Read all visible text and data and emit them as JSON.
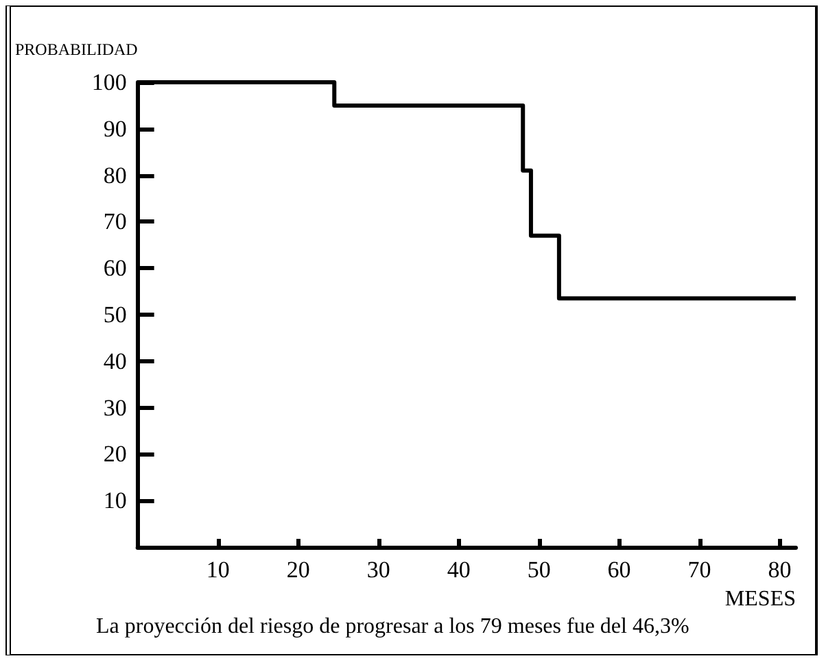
{
  "chart_data": {
    "type": "step",
    "ylabel": "PROBABILIDAD",
    "xlabel": "MESES",
    "annotations": [
      "La proyección del riesgo de progresar a los 79 meses fue del 46,3%"
    ],
    "x": [
      0,
      24.5,
      48,
      49,
      52.5,
      82
    ],
    "series": [
      {
        "color": "#000000",
        "values": [
          100,
          95,
          81,
          67,
          53.5,
          53.5
        ]
      }
    ],
    "xlim": [
      0,
      82
    ],
    "xticks": [
      10,
      20,
      30,
      40,
      50,
      60,
      70,
      80
    ],
    "ylim": [
      0,
      100
    ],
    "yticks": [
      10,
      20,
      30,
      40,
      50,
      60,
      70,
      80,
      90,
      100
    ],
    "marker": "none",
    "line_style": "solid"
  }
}
